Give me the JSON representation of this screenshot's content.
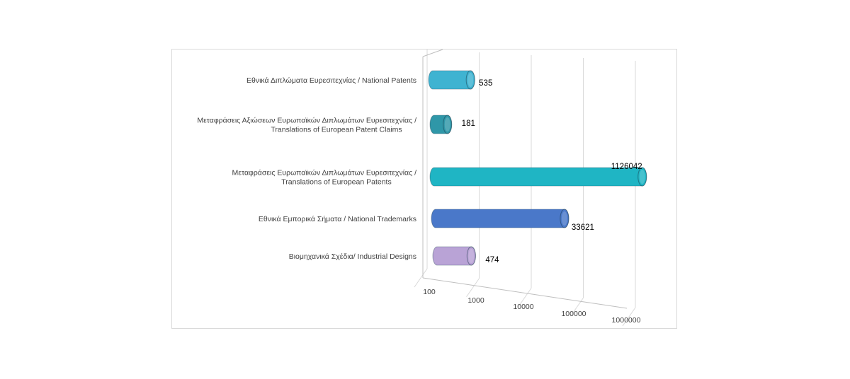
{
  "chart_data": {
    "type": "bar",
    "orientation": "horizontal",
    "style": "3d-cylinder",
    "x_scale": "log",
    "xlim": [
      100,
      1000000
    ],
    "x_ticks": [
      "100",
      "1000",
      "10000",
      "100000",
      "1000000"
    ],
    "grid": true,
    "legend": "none",
    "categories": [
      {
        "lines": [
          "Εθνικά  Διπλώματα Ευρεσιτεχνίας / National Patents"
        ]
      },
      {
        "lines": [
          "Μεταφράσεις  Αξιώσεων  Ευρωπαϊκών  Διπλωμάτων Ευρεσιτεχνίας  /",
          "Translations of European Patent Claims"
        ]
      },
      {
        "lines": [
          "Μεταφράσεις  Ευρωπαϊκών  Διπλωμάτων Ευρεσιτεχνίας  /",
          "Translations of European Patents"
        ]
      },
      {
        "lines": [
          "Εθνικά  Εμπορικά Σήματα / National Trademarks"
        ]
      },
      {
        "lines": [
          "Βιομηχανικά Σχέδια/  Industrial Designs"
        ]
      }
    ],
    "values": [
      535,
      181,
      1126042,
      33621,
      474
    ],
    "value_labels": [
      "535",
      "181",
      "1126042",
      "33621",
      "474"
    ],
    "colors": [
      "#3fb3d1",
      "#2f97a8",
      "#1fb5c4",
      "#4a78c9",
      "#b9a3d6"
    ]
  }
}
